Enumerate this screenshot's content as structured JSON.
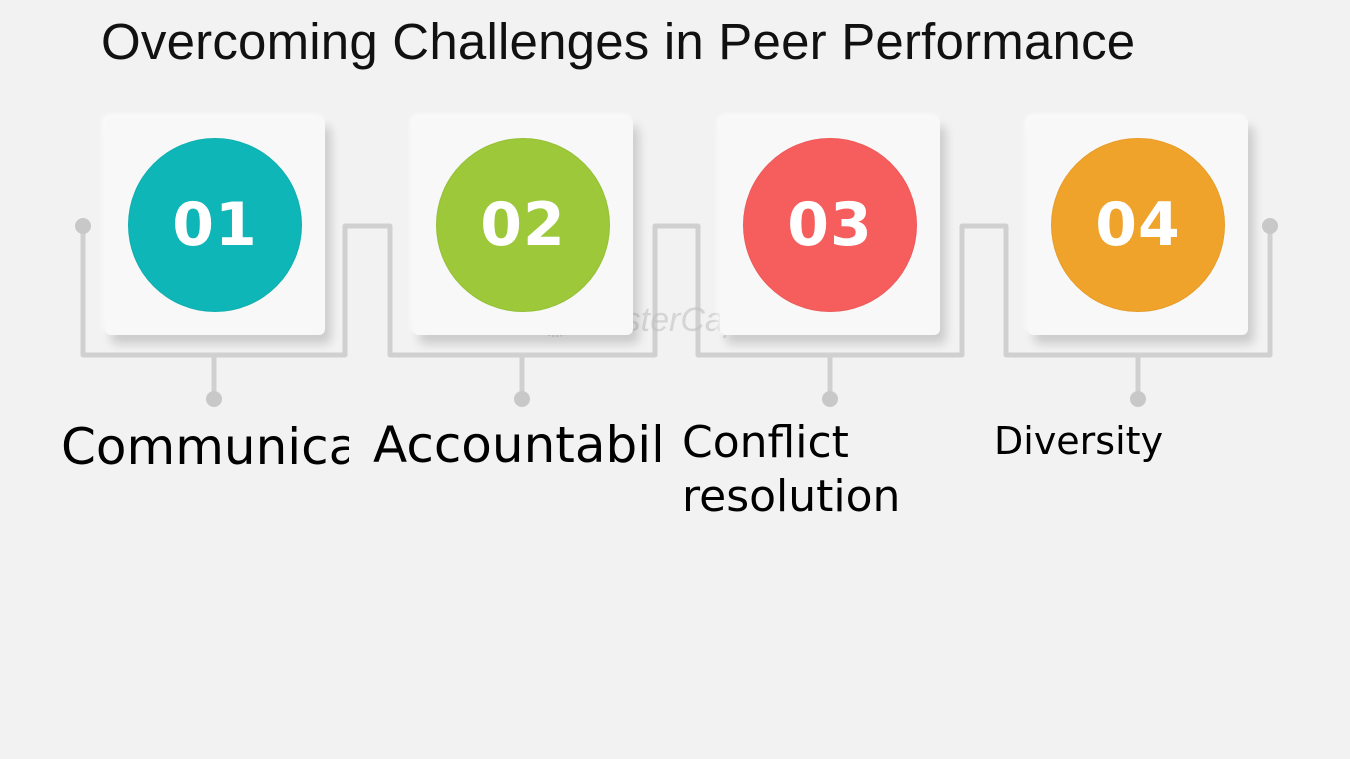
{
  "title": "Overcoming Challenges in Peer Performance",
  "steps": [
    {
      "number": "01",
      "label_line1": "Communication",
      "label_line2": "",
      "color": "#0fb6b8"
    },
    {
      "number": "02",
      "label_line1": "Accountability",
      "label_line2": "",
      "color": "#9cc83a"
    },
    {
      "number": "03",
      "label_line1": "Conflict",
      "label_line2": "resolution",
      "color": "#f65e5d"
    },
    {
      "number": "04",
      "label_line1": "Diversity",
      "label_line2": "",
      "color": "#f0a32a"
    }
  ],
  "watermark": "FasterCapital",
  "colors": {
    "background": "#f2f2f2",
    "connector": "#d0d0d0",
    "card": "#f8f8f8"
  }
}
